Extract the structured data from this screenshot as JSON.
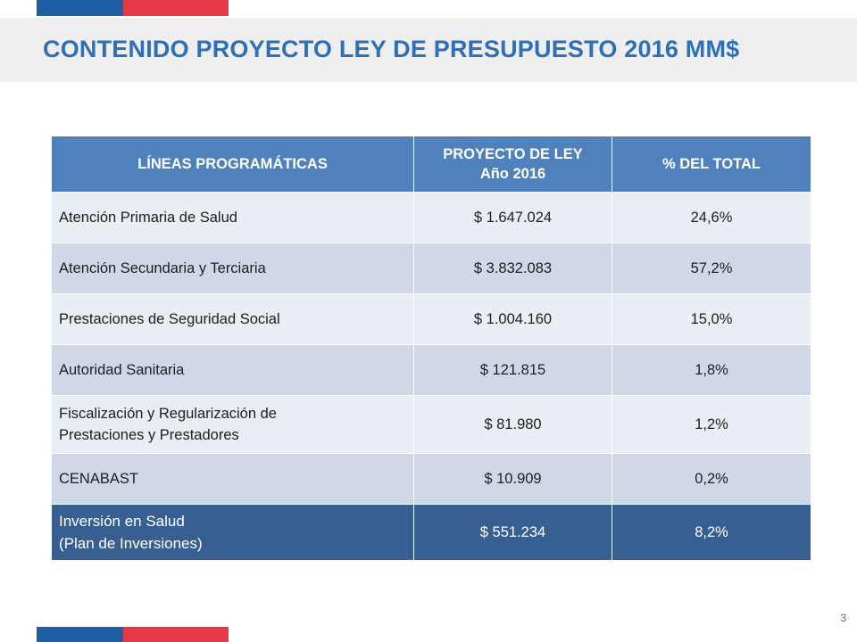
{
  "slide": {
    "title": "CONTENIDO PROYECTO LEY DE PRESUPUESTO 2016 MM$",
    "page_number": "3"
  },
  "colors": {
    "title": "#2f6fb5",
    "header_fill": "#4f81bd",
    "row_light": "#e9edf4",
    "row_dark": "#d0d8e8",
    "total_fill": "#375f92",
    "flag_blue": "#1f5fa8",
    "flag_red": "#e63946"
  },
  "table": {
    "headers": {
      "lineas": "LÍNEAS PROGRAMÁTICAS",
      "proyecto_line1": "PROYECTO DE LEY",
      "proyecto_line2": "Año 2016",
      "porcentaje": "% DEL TOTAL"
    },
    "rows": [
      {
        "label": "Atención Primaria de Salud",
        "amount": "$ 1.647.024",
        "percent": "24,6%"
      },
      {
        "label": "Atención Secundaria y Terciaria",
        "amount": "$ 3.832.083",
        "percent": "57,2%"
      },
      {
        "label": "Prestaciones de Seguridad Social",
        "amount": "$ 1.004.160",
        "percent": "15,0%"
      },
      {
        "label": "Autoridad Sanitaria",
        "amount": "$ 121.815",
        "percent": "1,8%"
      },
      {
        "label_line1": "Fiscalización y Regularización de",
        "label_line2": "Prestaciones y Prestadores",
        "amount": "$ 81.980",
        "percent": "1,2%"
      },
      {
        "label": "CENABAST",
        "amount": "$ 10.909",
        "percent": "0,2%"
      }
    ],
    "total_row": {
      "label_line1": "Inversión en Salud",
      "label_line2": "(Plan de Inversiones)",
      "amount": "$ 551.234",
      "percent": "8,2%"
    }
  }
}
